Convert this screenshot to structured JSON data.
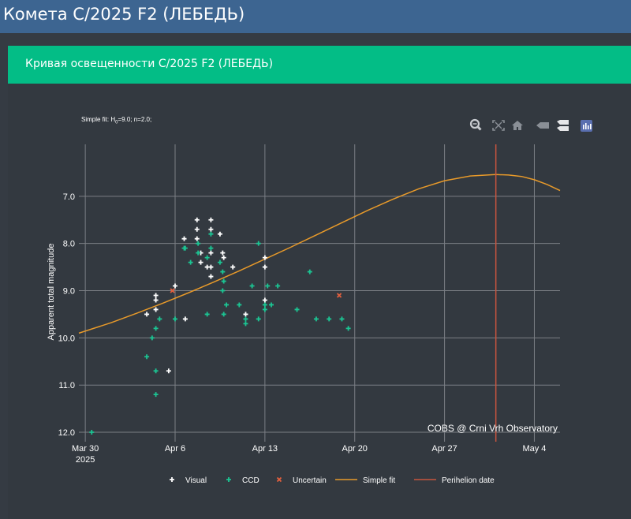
{
  "page": {
    "title": "Комета C/2025 F2 (ЛЕБЕДЬ)"
  },
  "panel": {
    "title": "Кривая освещенности C/2025 F2 (ЛЕБЕДЬ)"
  },
  "annotation": {
    "fit_prefix": "Simple fit: H",
    "fit_sub": "0",
    "fit_suffix": "=9.0; n=2.0;",
    "credit": "COBS @ Crni Vrh Observatory"
  },
  "modebar": [
    "zoom-icon",
    "autoscale-icon",
    "home-icon",
    "spike-lines-icon",
    "compare-hover-icon",
    "logo-icon"
  ],
  "colors": {
    "visual": "#ffffff",
    "ccd": "#1bc593",
    "uncertain": "#e5603e",
    "fit": "#e89a2a",
    "perihelion": "#c8553e",
    "grid": "#7b7f85",
    "background": "#333940"
  },
  "chart_data": {
    "type": "scatter",
    "ylabel": "Apparent total magnitude",
    "yaxis_reversed": true,
    "ylim": [
      12.2,
      5.9
    ],
    "xlim": [
      "2025-03-29T12:00",
      "2025-05-06T00:00"
    ],
    "x_ticks": [
      {
        "date": "2025-03-30",
        "label": "Mar 30",
        "sublabel": "2025"
      },
      {
        "date": "2025-04-06",
        "label": "Apr 6",
        "sublabel": ""
      },
      {
        "date": "2025-04-13",
        "label": "Apr 13",
        "sublabel": ""
      },
      {
        "date": "2025-04-20",
        "label": "Apr 20",
        "sublabel": ""
      },
      {
        "date": "2025-04-27",
        "label": "Apr 27",
        "sublabel": ""
      },
      {
        "date": "2025-05-04",
        "label": "May 4",
        "sublabel": ""
      }
    ],
    "y_ticks": [
      "7.0",
      "8.0",
      "9.0",
      "10.0",
      "11.0",
      "12.0"
    ],
    "legend_position": "bottom",
    "series": [
      {
        "name": "Visual",
        "marker": "cross",
        "points": [
          [
            "2025-04-03T19:00",
            9.5
          ],
          [
            "2025-04-04T12:00",
            9.1
          ],
          [
            "2025-04-04T12:00",
            9.2
          ],
          [
            "2025-04-04T12:00",
            9.4
          ],
          [
            "2025-04-05T12:00",
            10.7
          ],
          [
            "2025-04-06T00:00",
            8.9
          ],
          [
            "2025-04-06T17:00",
            7.9
          ],
          [
            "2025-04-06T19:00",
            9.6
          ],
          [
            "2025-04-07T17:00",
            7.5
          ],
          [
            "2025-04-07T17:00",
            7.7
          ],
          [
            "2025-04-07T17:00",
            7.9
          ],
          [
            "2025-04-08T00:00",
            8.2
          ],
          [
            "2025-04-08T00:00",
            8.4
          ],
          [
            "2025-04-08T12:00",
            8.5
          ],
          [
            "2025-04-08T19:00",
            7.5
          ],
          [
            "2025-04-08T19:00",
            7.7
          ],
          [
            "2025-04-08T19:00",
            8.2
          ],
          [
            "2025-04-08T19:00",
            8.5
          ],
          [
            "2025-04-08T19:00",
            8.7
          ],
          [
            "2025-04-09T12:00",
            7.8
          ],
          [
            "2025-04-09T17:00",
            8.2
          ],
          [
            "2025-04-09T19:00",
            8.3
          ],
          [
            "2025-04-10T12:00",
            8.5
          ],
          [
            "2025-04-11T12:00",
            9.5
          ],
          [
            "2025-04-13T00:00",
            8.3
          ],
          [
            "2025-04-13T00:00",
            8.5
          ],
          [
            "2025-04-13T00:00",
            9.2
          ]
        ]
      },
      {
        "name": "CCD",
        "marker": "cross",
        "points": [
          [
            "2025-03-30T12:00",
            12.0
          ],
          [
            "2025-04-03T19:00",
            10.4
          ],
          [
            "2025-04-04T05:00",
            10.0
          ],
          [
            "2025-04-04T12:00",
            9.8
          ],
          [
            "2025-04-04T12:00",
            10.7
          ],
          [
            "2025-04-04T12:00",
            11.2
          ],
          [
            "2025-04-04T19:00",
            9.6
          ],
          [
            "2025-04-06T00:00",
            9.6
          ],
          [
            "2025-04-06T17:00",
            8.1
          ],
          [
            "2025-04-06T19:00",
            8.1
          ],
          [
            "2025-04-07T05:00",
            8.4
          ],
          [
            "2025-04-07T19:00",
            8.0
          ],
          [
            "2025-04-07T19:00",
            8.2
          ],
          [
            "2025-04-08T12:00",
            8.3
          ],
          [
            "2025-04-08T12:00",
            9.5
          ],
          [
            "2025-04-08T19:00",
            7.8
          ],
          [
            "2025-04-08T19:00",
            8.1
          ],
          [
            "2025-04-09T12:00",
            8.4
          ],
          [
            "2025-04-09T17:00",
            8.6
          ],
          [
            "2025-04-09T17:00",
            9.0
          ],
          [
            "2025-04-09T19:00",
            8.8
          ],
          [
            "2025-04-09T19:00",
            9.5
          ],
          [
            "2025-04-10T00:00",
            9.3
          ],
          [
            "2025-04-11T00:00",
            9.3
          ],
          [
            "2025-04-11T12:00",
            9.6
          ],
          [
            "2025-04-11T12:00",
            9.7
          ],
          [
            "2025-04-12T00:00",
            8.9
          ],
          [
            "2025-04-12T12:00",
            8.0
          ],
          [
            "2025-04-12T12:00",
            9.6
          ],
          [
            "2025-04-13T00:00",
            9.3
          ],
          [
            "2025-04-13T00:00",
            9.4
          ],
          [
            "2025-04-13T05:00",
            8.9
          ],
          [
            "2025-04-13T12:00",
            9.3
          ],
          [
            "2025-04-14T00:00",
            8.9
          ],
          [
            "2025-04-15T12:00",
            9.4
          ],
          [
            "2025-04-16T12:00",
            8.6
          ],
          [
            "2025-04-17T00:00",
            9.6
          ],
          [
            "2025-04-18T00:00",
            9.6
          ],
          [
            "2025-04-19T00:00",
            9.6
          ],
          [
            "2025-04-19T12:00",
            9.8
          ]
        ]
      },
      {
        "name": "Uncertain",
        "marker": "x",
        "points": [
          [
            "2025-04-05T19:00",
            9.0
          ],
          [
            "2025-04-18T19:00",
            9.1
          ]
        ]
      },
      {
        "name": "Simple fit",
        "type": "line",
        "points": [
          [
            "2025-03-29T12:00",
            9.9
          ],
          [
            "2025-04-01T00:00",
            9.68
          ],
          [
            "2025-04-03T00:00",
            9.48
          ],
          [
            "2025-04-05T00:00",
            9.27
          ],
          [
            "2025-04-07T00:00",
            9.05
          ],
          [
            "2025-04-09T00:00",
            8.82
          ],
          [
            "2025-04-11T00:00",
            8.58
          ],
          [
            "2025-04-13T00:00",
            8.33
          ],
          [
            "2025-04-15T00:00",
            8.08
          ],
          [
            "2025-04-17T00:00",
            7.82
          ],
          [
            "2025-04-19T00:00",
            7.56
          ],
          [
            "2025-04-21T00:00",
            7.3
          ],
          [
            "2025-04-23T00:00",
            7.06
          ],
          [
            "2025-04-25T00:00",
            6.84
          ],
          [
            "2025-04-27T00:00",
            6.67
          ],
          [
            "2025-04-29T00:00",
            6.57
          ],
          [
            "2025-05-01T00:00",
            6.54
          ],
          [
            "2025-05-02T00:00",
            6.55
          ],
          [
            "2025-05-03T00:00",
            6.58
          ],
          [
            "2025-05-04T00:00",
            6.65
          ],
          [
            "2025-05-05T00:00",
            6.75
          ],
          [
            "2025-05-06T00:00",
            6.88
          ]
        ]
      },
      {
        "name": "Perihelion date",
        "type": "vline",
        "x": "2025-05-01T00:00"
      }
    ]
  }
}
